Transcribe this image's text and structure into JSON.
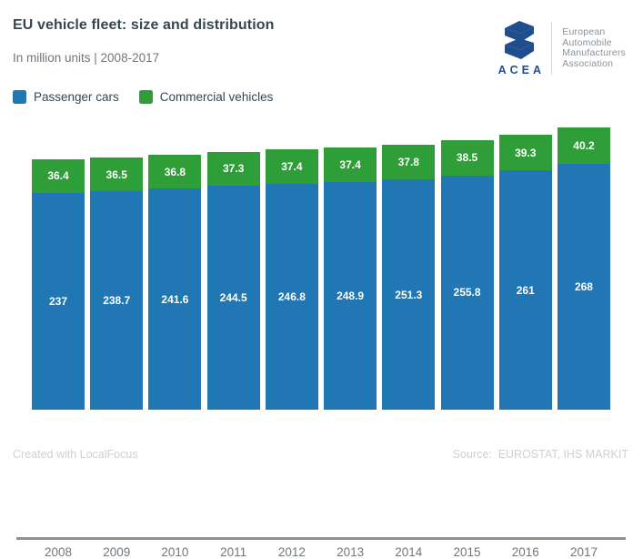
{
  "header": {
    "title": "EU vehicle fleet: size and distribution",
    "subtitle": "In million units | 2008-2017"
  },
  "logo": {
    "abbr": "ACEA",
    "org_lines": [
      "European",
      "Automobile",
      "Manufacturers",
      "Association"
    ],
    "brand_color": "#1e4e8c"
  },
  "legend": {
    "items": [
      {
        "label": "Passenger cars",
        "color": "#2177b4"
      },
      {
        "label": "Commercial vehicles",
        "color": "#2f9e38"
      }
    ]
  },
  "chart_data": {
    "type": "bar",
    "stacked": true,
    "title": "EU vehicle fleet: size and distribution",
    "subtitle": "In million units | 2008-2017",
    "unit": "million units",
    "categories": [
      "2008",
      "2009",
      "2010",
      "2011",
      "2012",
      "2013",
      "2014",
      "2015",
      "2016",
      "2017"
    ],
    "series": [
      {
        "name": "Passenger cars",
        "color": "#2177b4",
        "values": [
          237,
          238.7,
          241.6,
          244.5,
          246.8,
          248.9,
          251.3,
          255.8,
          261,
          268
        ]
      },
      {
        "name": "Commercial vehicles",
        "color": "#2f9e38",
        "values": [
          36.4,
          36.5,
          36.8,
          37.3,
          37.4,
          37.4,
          37.8,
          38.5,
          39.3,
          40.2
        ]
      }
    ],
    "value_labels": true,
    "legend_position": "top-left",
    "grid": false,
    "y_baseline": 0
  },
  "footer": {
    "credit": "Created with LocalFocus",
    "source": "Source:  EUROSTAT, IHS MARKIT"
  }
}
